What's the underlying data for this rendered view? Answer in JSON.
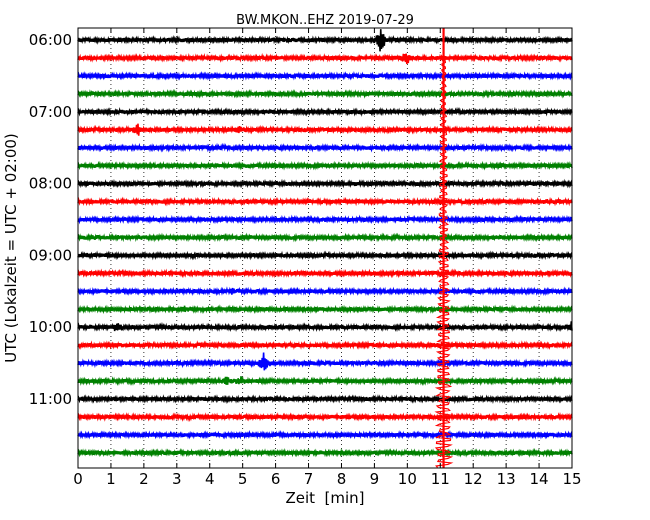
{
  "chart_data": {
    "type": "line",
    "title": "BW.MKON..EHZ 2019-07-29",
    "xlabel": "Zeit  [min]",
    "ylabel": "UTC (Lokalzeit = UTC + 02:00)",
    "xlim": [
      0,
      15
    ],
    "x_ticks": [
      "0",
      "1",
      "2",
      "3",
      "4",
      "5",
      "6",
      "7",
      "8",
      "9",
      "10",
      "11",
      "12",
      "13",
      "14",
      "15"
    ],
    "y_ticks": [
      "06:00",
      "07:00",
      "08:00",
      "09:00",
      "10:00",
      "11:00"
    ],
    "grid": "vertical dotted",
    "trace_colors": [
      "#000000",
      "#ff0000",
      "#0000ff",
      "#008000"
    ],
    "row_start_times": [
      "06:00",
      "06:15",
      "06:30",
      "06:45",
      "07:00",
      "07:15",
      "07:30",
      "07:45",
      "08:00",
      "08:15",
      "08:30",
      "08:45",
      "09:00",
      "09:15",
      "09:30",
      "09:45",
      "10:00",
      "10:15",
      "10:30",
      "10:45",
      "11:00",
      "11:15",
      "11:30",
      "11:45"
    ],
    "events": [
      {
        "row": 0,
        "minute": 9.2,
        "amplitude": 0.9
      },
      {
        "row": 1,
        "minute": 9.95,
        "amplitude": 0.45
      },
      {
        "row": 5,
        "minute": 1.8,
        "amplitude": 0.4
      },
      {
        "row": 5,
        "minute": 4.9,
        "amplitude": 0.15
      },
      {
        "row": 16,
        "minute": 1.2,
        "amplitude": 0.3
      },
      {
        "row": 16,
        "minute": 15.0,
        "amplitude": 0.3
      },
      {
        "row": 18,
        "minute": 5.65,
        "amplitude": 0.6
      },
      {
        "row": 19,
        "minute": 4.5,
        "amplitude": 0.2
      },
      {
        "row": 19,
        "minute": 4.95,
        "amplitude": 0.2
      },
      {
        "row": 15,
        "minute": 3.25,
        "amplitude": 0.15
      },
      {
        "row": 14,
        "minute": 4.7,
        "amplitude": 0.15
      }
    ],
    "large_event": {
      "row": 1,
      "minute": 11.1
    }
  }
}
